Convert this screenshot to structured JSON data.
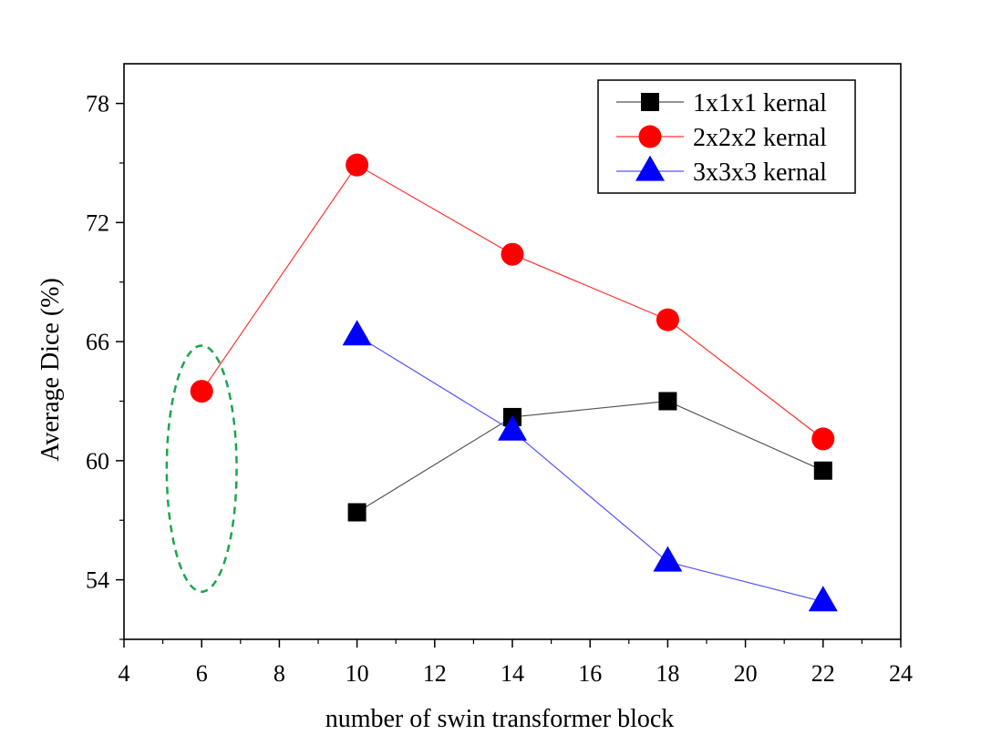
{
  "chart_data": {
    "type": "line",
    "title": "",
    "xlabel": "number of swin transformer block",
    "ylabel": "Average Dice (%)",
    "xlim": [
      4,
      24
    ],
    "ylim": [
      51,
      80
    ],
    "x_ticks": [
      4,
      6,
      8,
      10,
      12,
      14,
      16,
      18,
      20,
      22,
      24
    ],
    "y_ticks": [
      54,
      60,
      66,
      72,
      78
    ],
    "grid": false,
    "legend_position": "top-right",
    "series": [
      {
        "name": "1x1x1 kernal",
        "color": "#000000",
        "line_color": "#555555",
        "marker": "square",
        "x": [
          10,
          14,
          18,
          22
        ],
        "y": [
          57.4,
          62.2,
          63.0,
          59.5
        ]
      },
      {
        "name": "2x2x2 kernal",
        "color": "#ff0000",
        "line_color": "#ff3333",
        "marker": "circle",
        "x": [
          6,
          10,
          14,
          18,
          22
        ],
        "y": [
          63.5,
          74.9,
          70.4,
          67.1,
          61.1
        ]
      },
      {
        "name": "3x3x3 kernal",
        "color": "#0000ff",
        "line_color": "#5555ff",
        "marker": "triangle",
        "x": [
          10,
          14,
          18,
          22
        ],
        "y": [
          66.3,
          61.5,
          54.9,
          52.9
        ]
      }
    ],
    "annotations": [
      {
        "type": "dashed-ellipse",
        "color": "#1aa64a",
        "center_x": 6,
        "center_y": 59.6,
        "radius_x": 0.9,
        "radius_y": 6.2
      }
    ]
  }
}
